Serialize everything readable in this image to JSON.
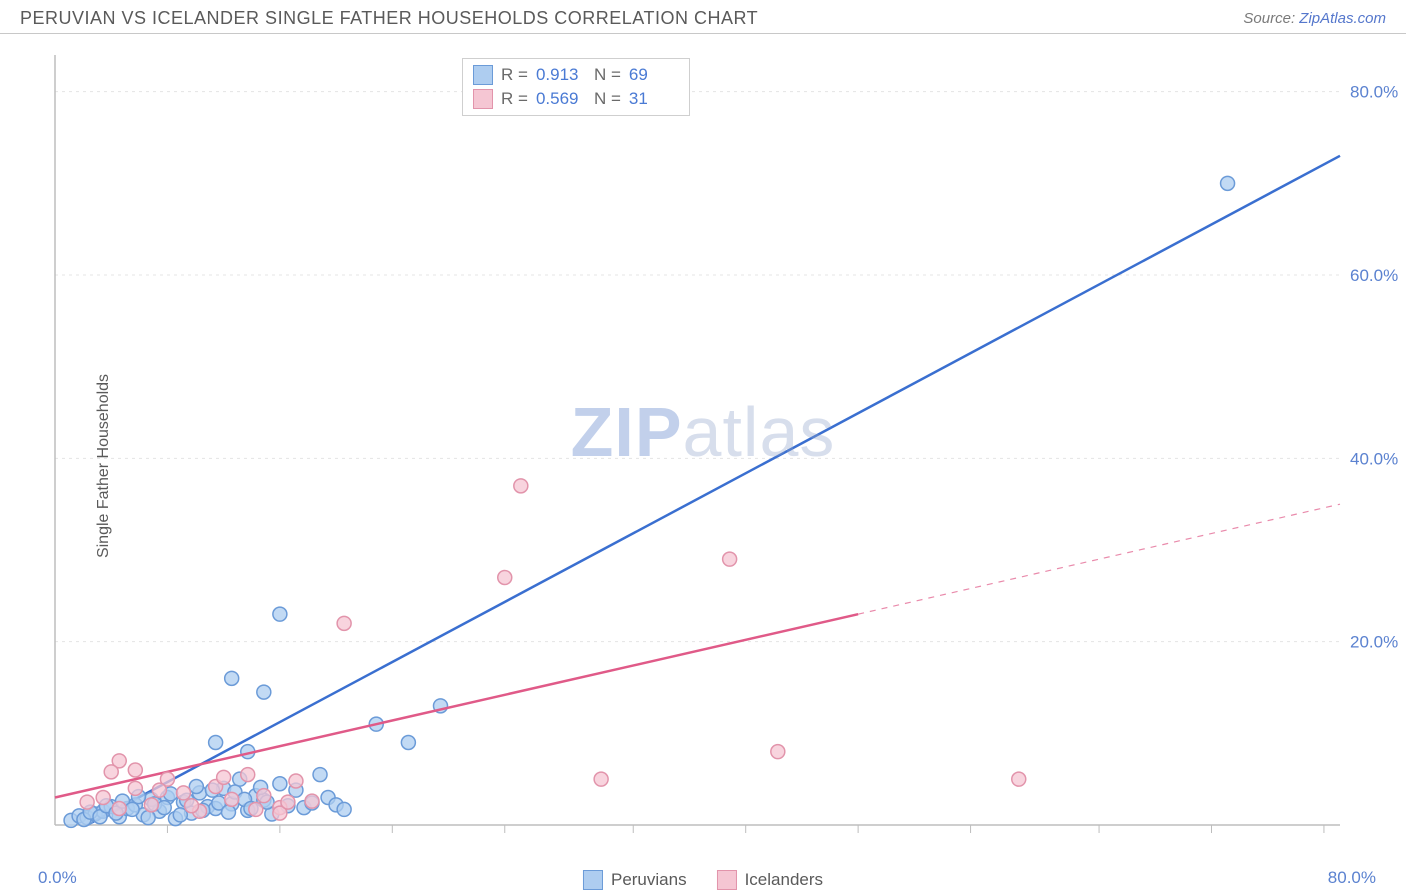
{
  "header": {
    "title": "PERUVIAN VS ICELANDER SINGLE FATHER HOUSEHOLDS CORRELATION CHART",
    "source_prefix": "Source: ",
    "source_link": "ZipAtlas.com"
  },
  "chart": {
    "type": "scatter",
    "ylabel": "Single Father Households",
    "xlim": [
      0,
      80
    ],
    "ylim": [
      0,
      84
    ],
    "x_origin_label": "0.0%",
    "x_max_label": "80.0%",
    "y_ticks": [
      20.0,
      40.0,
      60.0,
      80.0
    ],
    "y_tick_labels": [
      "20.0%",
      "40.0%",
      "60.0%",
      "80.0%"
    ],
    "x_grid_ticks": [
      7,
      14,
      21,
      28,
      36,
      43,
      50,
      57,
      65,
      72,
      79
    ],
    "background_color": "#ffffff",
    "grid_color": "#e4e4e4",
    "axis_color": "#bdbdbd",
    "axis_label_color": "#5b82d0",
    "marker_radius": 7,
    "marker_stroke_width": 1.5,
    "line_width": 2.5,
    "series": [
      {
        "name": "Peruvians",
        "fill": "#aecdf0",
        "stroke": "#6b9bd8",
        "line_color": "#3a6fd0",
        "R": "0.913",
        "N": "69",
        "trend": {
          "x1": 2,
          "y1": 0,
          "x2": 80,
          "y2": 73,
          "dash": null
        },
        "points": [
          [
            1,
            0.5
          ],
          [
            1.5,
            1
          ],
          [
            2,
            0.8
          ],
          [
            2.5,
            1.2
          ],
          [
            3,
            1.5
          ],
          [
            3.5,
            2
          ],
          [
            4,
            0.9
          ],
          [
            4.5,
            1.8
          ],
          [
            5,
            2.2
          ],
          [
            5.5,
            1.1
          ],
          [
            6,
            2.8
          ],
          [
            6.5,
            1.5
          ],
          [
            7,
            3
          ],
          [
            7.5,
            0.7
          ],
          [
            8,
            2.5
          ],
          [
            8.5,
            1.3
          ],
          [
            9,
            3.5
          ],
          [
            9.5,
            2
          ],
          [
            10,
            1.8
          ],
          [
            10.5,
            4
          ],
          [
            11,
            2.3
          ],
          [
            11.5,
            5
          ],
          [
            12,
            1.6
          ],
          [
            12.5,
            3.2
          ],
          [
            13,
            2.7
          ],
          [
            13.5,
            1.2
          ],
          [
            14,
            4.5
          ],
          [
            14.5,
            2.1
          ],
          [
            15,
            3.8
          ],
          [
            15.5,
            1.9
          ],
          [
            16,
            2.4
          ],
          [
            16.5,
            5.5
          ],
          [
            17,
            3
          ],
          [
            17.5,
            2.2
          ],
          [
            18,
            1.7
          ],
          [
            12,
            8
          ],
          [
            13,
            14.5
          ],
          [
            14,
            23
          ],
          [
            10,
            9
          ],
          [
            11,
            16
          ],
          [
            20,
            11
          ],
          [
            22,
            9
          ],
          [
            24,
            13
          ],
          [
            1.8,
            0.6
          ],
          [
            2.2,
            1.4
          ],
          [
            2.8,
            0.9
          ],
          [
            3.2,
            2.1
          ],
          [
            3.8,
            1.3
          ],
          [
            4.2,
            2.6
          ],
          [
            4.8,
            1.7
          ],
          [
            5.2,
            3.1
          ],
          [
            5.8,
            0.8
          ],
          [
            6.2,
            2.3
          ],
          [
            6.8,
            1.9
          ],
          [
            7.2,
            3.4
          ],
          [
            7.8,
            1.1
          ],
          [
            8.2,
            2.7
          ],
          [
            8.8,
            4.2
          ],
          [
            9.2,
            1.6
          ],
          [
            9.8,
            3.8
          ],
          [
            10.2,
            2.4
          ],
          [
            10.8,
            1.4
          ],
          [
            11.2,
            3.6
          ],
          [
            11.8,
            2.8
          ],
          [
            12.2,
            1.8
          ],
          [
            12.8,
            4.1
          ],
          [
            13.2,
            2.5
          ],
          [
            73,
            70
          ]
        ]
      },
      {
        "name": "Icelanders",
        "fill": "#f5c6d3",
        "stroke": "#e294ab",
        "line_color": "#e05a88",
        "R": "0.569",
        "N": "31",
        "trend": {
          "x1": 0,
          "y1": 3,
          "x2": 50,
          "y2": 23,
          "dash_to_x": 80,
          "dash_to_y": 35
        },
        "points": [
          [
            2,
            2.5
          ],
          [
            3,
            3
          ],
          [
            4,
            1.8
          ],
          [
            5,
            4
          ],
          [
            6,
            2.2
          ],
          [
            7,
            5
          ],
          [
            8,
            3.5
          ],
          [
            9,
            1.5
          ],
          [
            10,
            4.2
          ],
          [
            11,
            2.8
          ],
          [
            12,
            5.5
          ],
          [
            13,
            3.2
          ],
          [
            14,
            1.9
          ],
          [
            15,
            4.8
          ],
          [
            16,
            2.6
          ],
          [
            4,
            7
          ],
          [
            5,
            6
          ],
          [
            18,
            22
          ],
          [
            28,
            27
          ],
          [
            29,
            37
          ],
          [
            34,
            5
          ],
          [
            42,
            29
          ],
          [
            45,
            8
          ],
          [
            60,
            5
          ],
          [
            14,
            1.3
          ],
          [
            6.5,
            3.8
          ],
          [
            8.5,
            2.1
          ],
          [
            10.5,
            5.2
          ],
          [
            12.5,
            1.7
          ],
          [
            3.5,
            5.8
          ],
          [
            14.5,
            2.5
          ]
        ]
      }
    ],
    "watermark": {
      "zip": "ZIP",
      "atlas": "atlas"
    },
    "stats_labels": {
      "R": "R  =",
      "N": "N  ="
    },
    "legend_items": [
      "Peruvians",
      "Icelanders"
    ]
  }
}
